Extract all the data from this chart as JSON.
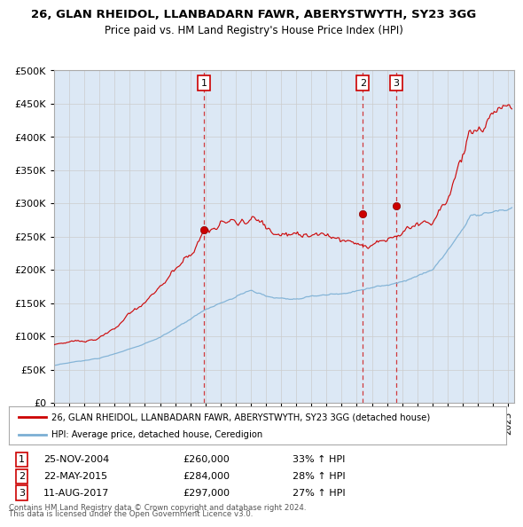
{
  "title": "26, GLAN RHEIDOL, LLANBADARN FAWR, ABERYSTWYTH, SY23 3GG",
  "subtitle": "Price paid vs. HM Land Registry's House Price Index (HPI)",
  "legend_line1": "26, GLAN RHEIDOL, LLANBADARN FAWR, ABERYSTWYTH, SY23 3GG (detached house)",
  "legend_line2": "HPI: Average price, detached house, Ceredigion",
  "footer1": "Contains HM Land Registry data © Crown copyright and database right 2024.",
  "footer2": "This data is licensed under the Open Government Licence v3.0.",
  "transactions": [
    {
      "num": 1,
      "date": "25-NOV-2004",
      "price": 260000,
      "hpi_pct": "33%",
      "x": 2004.9
    },
    {
      "num": 2,
      "date": "22-MAY-2015",
      "price": 284000,
      "hpi_pct": "28%",
      "x": 2015.4
    },
    {
      "num": 3,
      "date": "11-AUG-2017",
      "price": 297000,
      "hpi_pct": "27%",
      "x": 2017.6
    }
  ],
  "ylim": [
    0,
    500000
  ],
  "yticks": [
    0,
    50000,
    100000,
    150000,
    200000,
    250000,
    300000,
    350000,
    400000,
    450000,
    500000
  ],
  "hpi_color": "#7bafd4",
  "price_color": "#cc0000",
  "vline_color": "#cc0000",
  "grid_color": "#cccccc",
  "background_color": "#ffffff",
  "plot_bg_color": "#dce8f5"
}
